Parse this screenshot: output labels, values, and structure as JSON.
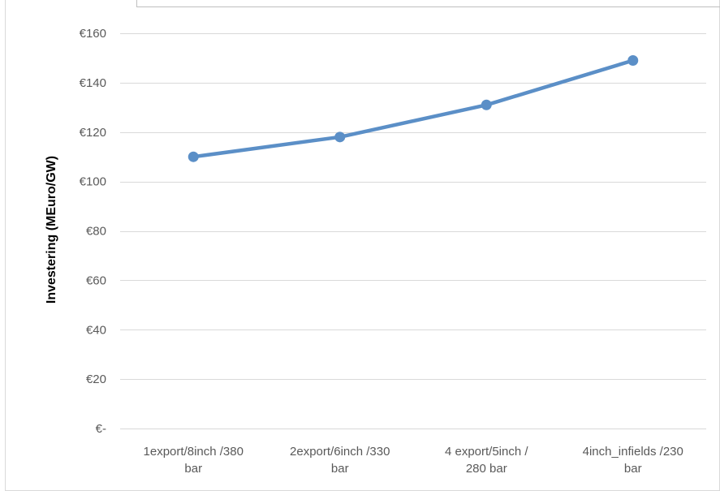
{
  "chart_data": {
    "type": "line",
    "title": "",
    "xlabel": "",
    "ylabel": "Investering (MEuro/GW)",
    "categories": [
      [
        "1export/8inch /380",
        "bar"
      ],
      [
        "2export/6inch /330",
        "bar"
      ],
      [
        "4 export/5inch /",
        "280 bar"
      ],
      [
        "4inch_infields /230",
        "bar"
      ]
    ],
    "series": [
      {
        "values": [
          110,
          118,
          131,
          149
        ],
        "color": "#5b8fc7"
      }
    ],
    "ylim": [
      0,
      160
    ],
    "y_ticks": [
      {
        "value": 0,
        "label": "€-"
      },
      {
        "value": 20,
        "label": "€20"
      },
      {
        "value": 40,
        "label": "€40"
      },
      {
        "value": 60,
        "label": "€60"
      },
      {
        "value": 80,
        "label": "€80"
      },
      {
        "value": 100,
        "label": "€100"
      },
      {
        "value": 120,
        "label": "€120"
      },
      {
        "value": 140,
        "label": "€140"
      },
      {
        "value": 160,
        "label": "€160"
      }
    ],
    "grid": true,
    "legend": "none",
    "gridline_color": "#d9d9d9",
    "frame_color": "#d9d9d9"
  }
}
